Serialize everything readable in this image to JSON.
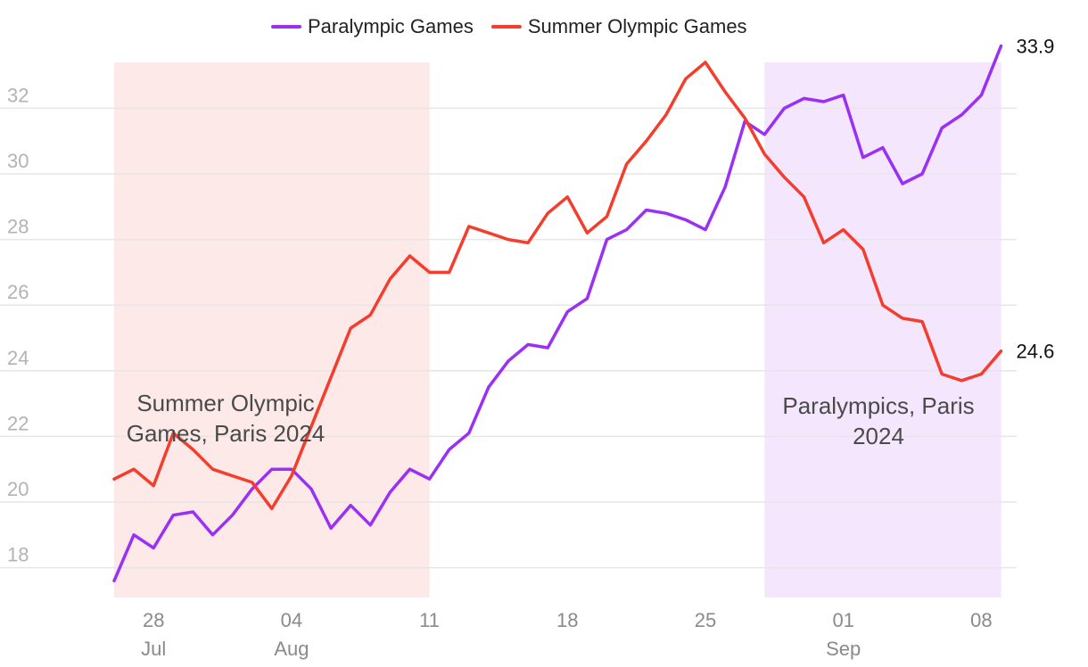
{
  "chart_data": {
    "type": "line",
    "legend_placement": "top-center",
    "grid": true,
    "ylim": [
      17.5,
      34.2
    ],
    "yticks": [
      18,
      20,
      22,
      24,
      26,
      28,
      30,
      32
    ],
    "xlim": [
      "2024-07-26",
      "2024-09-09"
    ],
    "xticks": [
      {
        "date": "2024-07-28",
        "day": "28",
        "month": "Jul"
      },
      {
        "date": "2024-08-04",
        "day": "04",
        "month": "Aug"
      },
      {
        "date": "2024-08-11",
        "day": "11",
        "month": ""
      },
      {
        "date": "2024-08-18",
        "day": "18",
        "month": ""
      },
      {
        "date": "2024-08-25",
        "day": "25",
        "month": ""
      },
      {
        "date": "2024-09-01",
        "day": "01",
        "month": "Sep"
      },
      {
        "date": "2024-09-08",
        "day": "08",
        "month": ""
      }
    ],
    "x": [
      "2024-07-26",
      "2024-07-27",
      "2024-07-28",
      "2024-07-29",
      "2024-07-30",
      "2024-07-31",
      "2024-08-01",
      "2024-08-02",
      "2024-08-03",
      "2024-08-04",
      "2024-08-05",
      "2024-08-06",
      "2024-08-07",
      "2024-08-08",
      "2024-08-09",
      "2024-08-10",
      "2024-08-11",
      "2024-08-12",
      "2024-08-13",
      "2024-08-14",
      "2024-08-15",
      "2024-08-16",
      "2024-08-17",
      "2024-08-18",
      "2024-08-19",
      "2024-08-20",
      "2024-08-21",
      "2024-08-22",
      "2024-08-23",
      "2024-08-24",
      "2024-08-25",
      "2024-08-26",
      "2024-08-27",
      "2024-08-28",
      "2024-08-29",
      "2024-08-30",
      "2024-08-31",
      "2024-09-01",
      "2024-09-02",
      "2024-09-03",
      "2024-09-04",
      "2024-09-05",
      "2024-09-06",
      "2024-09-07",
      "2024-09-08",
      "2024-09-09"
    ],
    "series": [
      {
        "name": "Paralympic Games",
        "color": "#9b30f5",
        "end_label": "33.9",
        "values": [
          17.6,
          19.0,
          18.6,
          19.6,
          19.7,
          19.0,
          19.6,
          20.4,
          21.0,
          21.0,
          20.4,
          19.2,
          19.9,
          19.3,
          20.3,
          21.0,
          20.7,
          21.6,
          22.1,
          23.5,
          24.3,
          24.8,
          24.7,
          25.8,
          26.2,
          28.0,
          28.3,
          28.9,
          28.8,
          28.6,
          28.3,
          29.6,
          31.6,
          31.2,
          32.0,
          32.3,
          32.2,
          32.4,
          30.5,
          30.8,
          29.7,
          30.0,
          31.4,
          31.8,
          32.4,
          33.9
        ]
      },
      {
        "name": "Summer Olympic Games",
        "color": "#f53d2d",
        "end_label": "24.6",
        "values": [
          20.7,
          21.0,
          20.5,
          22.1,
          21.6,
          21.0,
          20.8,
          20.6,
          19.8,
          20.8,
          22.3,
          23.8,
          25.3,
          25.7,
          26.8,
          27.5,
          27.0,
          27.0,
          28.4,
          28.2,
          28.0,
          27.9,
          28.8,
          29.3,
          28.2,
          28.7,
          30.3,
          31.0,
          31.8,
          32.9,
          33.4,
          32.5,
          31.7,
          30.6,
          29.9,
          29.3,
          27.9,
          28.3,
          27.7,
          26.0,
          25.6,
          25.5,
          23.9,
          23.7,
          23.9,
          24.6
        ]
      }
    ],
    "bands": [
      {
        "label": "Summer Olympic Games, Paris 2024",
        "label_lines": [
          "Summer Olympic",
          "Games, Paris 2024"
        ],
        "start": "2024-07-26",
        "end": "2024-08-11",
        "color": "#fde9e7"
      },
      {
        "label": "Paralympics, Paris 2024",
        "label_lines": [
          "Paralympics, Paris",
          "2024"
        ],
        "start": "2024-08-28",
        "end": "2024-09-09",
        "color": "#f3e6fd"
      }
    ]
  }
}
